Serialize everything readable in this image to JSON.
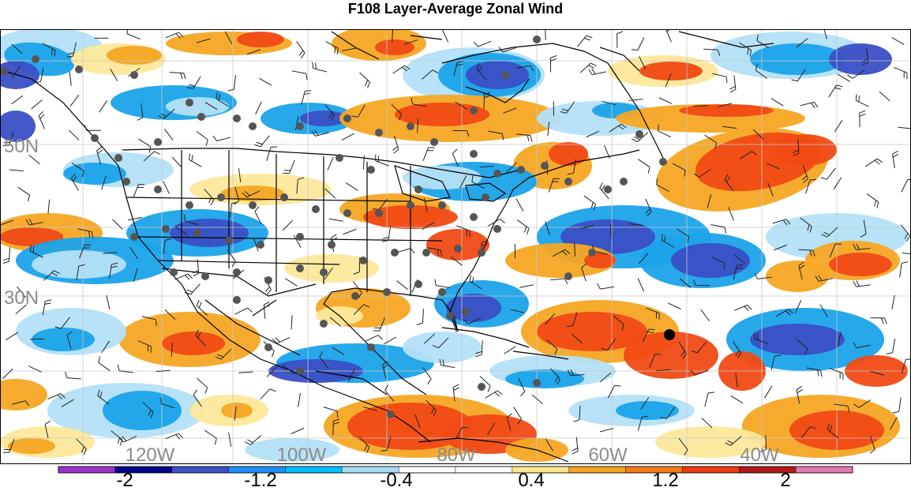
{
  "title": "F108 Layer-Average Zonal Wind",
  "map": {
    "lat_labels": [
      "50N",
      "30N"
    ],
    "lon_labels": [
      "120W",
      "100W",
      "80W",
      "60W",
      "40W"
    ],
    "label_color": "#8c8c8c",
    "grid_color": "#c8c8c8",
    "coastline_color": "#000000",
    "station_color": "#555555",
    "highlight_station_color": "#000000"
  },
  "colorbar": {
    "colors": [
      "#9932cc",
      "#00008b",
      "#3a52c6",
      "#1e90ff",
      "#00bfff",
      "#a8dcf5",
      "#ffffff",
      "#ffffff",
      "#fbe88e",
      "#f5a623",
      "#f57a14",
      "#ee3a10",
      "#b21a1a",
      "#e07ab0"
    ],
    "labels": [
      "-2",
      "-1.2",
      "-0.4",
      "0.4",
      "1.2",
      "2"
    ]
  },
  "legend_palette": {
    "strong_neg": "#3a4fc4",
    "mid_neg": "#1aa3ea",
    "light_neg": "#b3e0f7",
    "light_pos": "#fce89a",
    "mid_pos": "#f5a623",
    "strong_pos": "#f04a15"
  }
}
